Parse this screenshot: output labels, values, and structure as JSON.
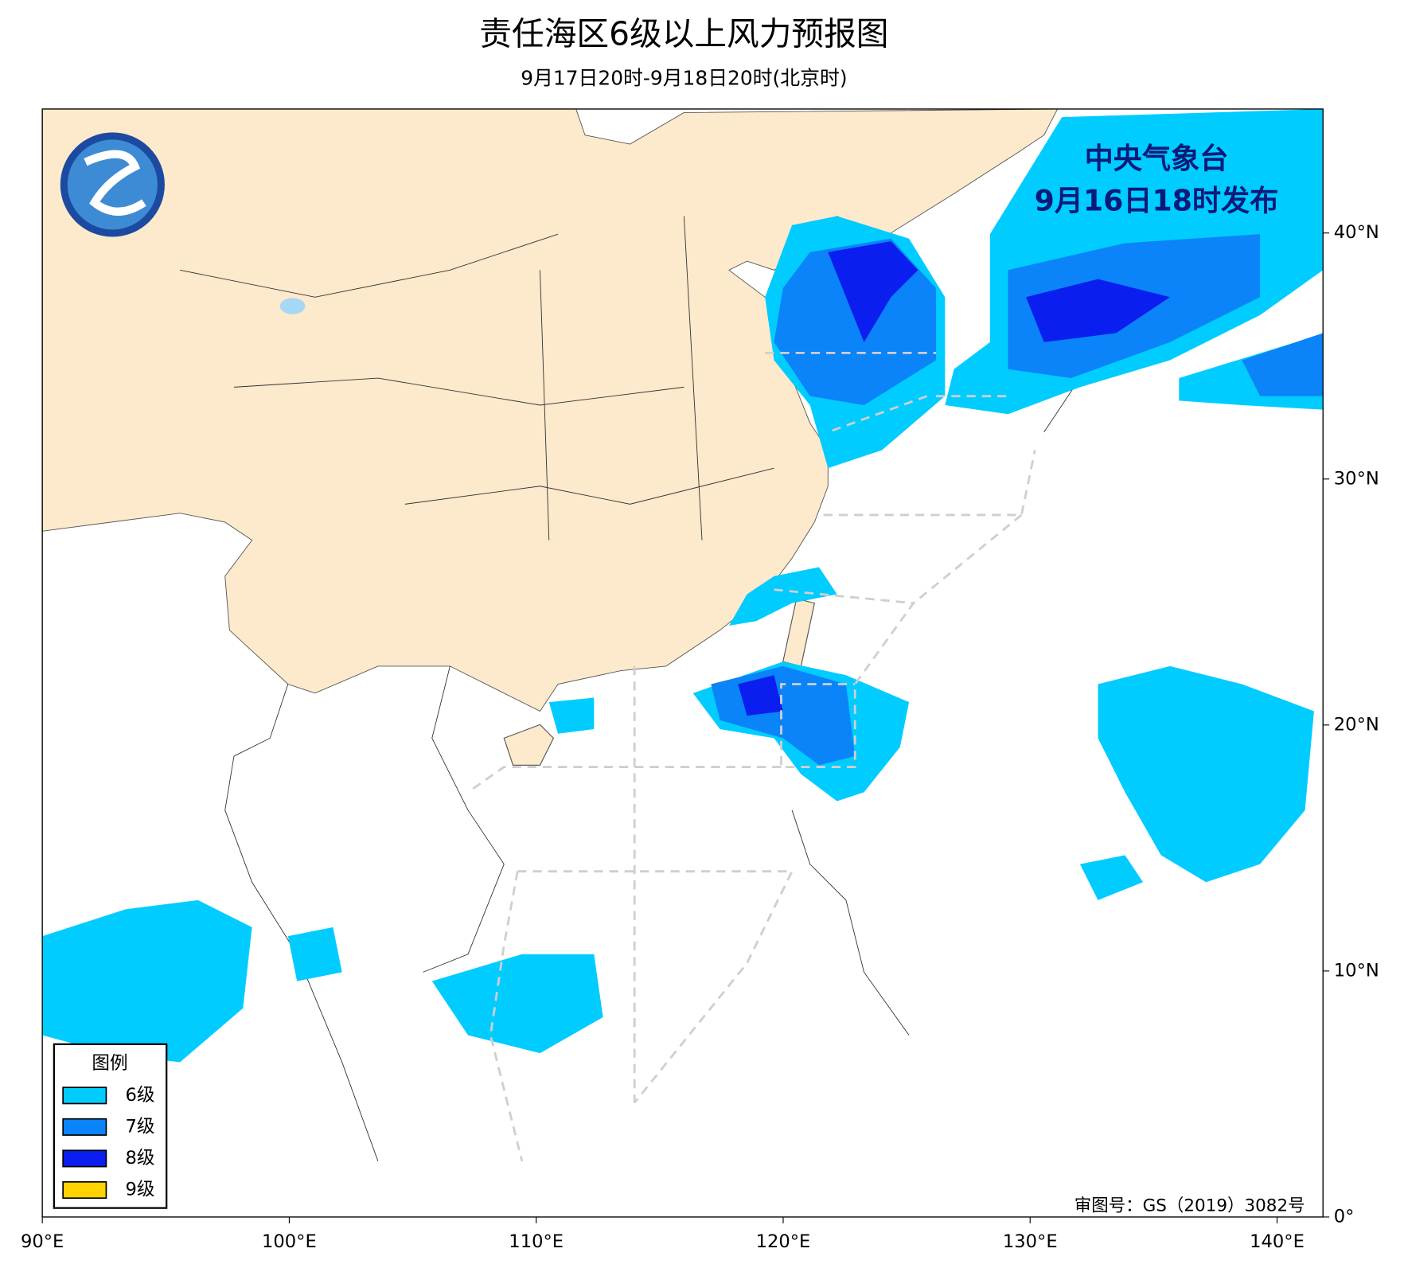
{
  "header": {
    "title": "责任海区6级以上风力预报图",
    "subtitle": "9月17日20时-9月18日20时(北京时)"
  },
  "map": {
    "xlim": [
      90,
      141.86
    ],
    "ylim": [
      0,
      45.04
    ],
    "xticks": [
      {
        "value": 90,
        "label": "90°E"
      },
      {
        "value": 100,
        "label": "100°E"
      },
      {
        "value": 110,
        "label": "110°E"
      },
      {
        "value": 120,
        "label": "120°E"
      },
      {
        "value": 130,
        "label": "130°E"
      },
      {
        "value": 140,
        "label": "140°E"
      }
    ],
    "yticks": [
      {
        "value": 0,
        "label": "0°"
      },
      {
        "value": 10,
        "label": "10°N"
      },
      {
        "value": 20,
        "label": "20°N"
      },
      {
        "value": 30,
        "label": "30°N"
      },
      {
        "value": 40,
        "label": "40°N"
      }
    ]
  },
  "issuer": {
    "agency": "中央气象台",
    "time": "9月16日18时发布"
  },
  "legend": {
    "title": "图例",
    "items": [
      {
        "label": "6级",
        "color": "#00ccff"
      },
      {
        "label": "7级",
        "color": "#0a84f8"
      },
      {
        "label": "8级",
        "color": "#0a1ef0"
      },
      {
        "label": "9级",
        "color": "#ffd200"
      }
    ]
  },
  "review_number": "审图号：GS（2019）3082号"
}
